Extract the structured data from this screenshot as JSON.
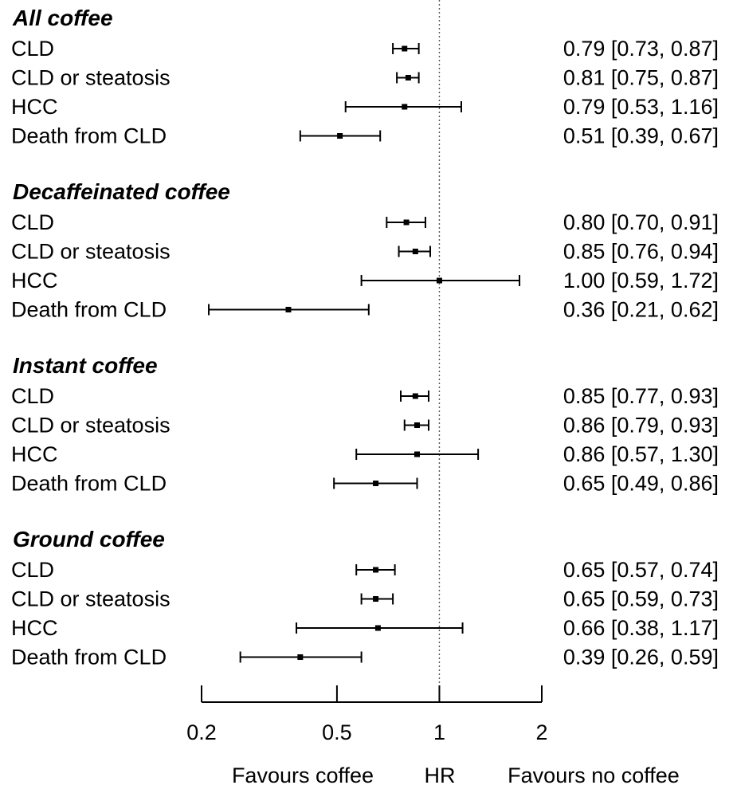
{
  "chart_data": {
    "type": "forest",
    "scale": "log",
    "axis": {
      "ticks": [
        0.2,
        0.5,
        1,
        2
      ],
      "tick_labels": [
        "0.2",
        "0.5",
        "1",
        "2"
      ],
      "range": [
        0.2,
        2
      ],
      "reference_line": 1
    },
    "x_captions": {
      "left": "Favours coffee",
      "center": "HR",
      "right": "Favours no coffee"
    },
    "groups": [
      {
        "title": "All coffee",
        "rows": [
          {
            "label": "CLD",
            "hr": 0.79,
            "lo": 0.73,
            "hi": 0.87,
            "text": "0.79 [0.73, 0.87]"
          },
          {
            "label": "CLD or steatosis",
            "hr": 0.81,
            "lo": 0.75,
            "hi": 0.87,
            "text": "0.81 [0.75, 0.87]"
          },
          {
            "label": "HCC",
            "hr": 0.79,
            "lo": 0.53,
            "hi": 1.16,
            "text": "0.79 [0.53, 1.16]"
          },
          {
            "label": "Death from CLD",
            "hr": 0.51,
            "lo": 0.39,
            "hi": 0.67,
            "text": "0.51 [0.39, 0.67]"
          }
        ]
      },
      {
        "title": "Decaffeinated coffee",
        "rows": [
          {
            "label": "CLD",
            "hr": 0.8,
            "lo": 0.7,
            "hi": 0.91,
            "text": "0.80 [0.70, 0.91]"
          },
          {
            "label": "CLD or steatosis",
            "hr": 0.85,
            "lo": 0.76,
            "hi": 0.94,
            "text": "0.85 [0.76, 0.94]"
          },
          {
            "label": "HCC",
            "hr": 1.0,
            "lo": 0.59,
            "hi": 1.72,
            "text": "1.00 [0.59, 1.72]"
          },
          {
            "label": "Death from CLD",
            "hr": 0.36,
            "lo": 0.21,
            "hi": 0.62,
            "text": "0.36 [0.21, 0.62]"
          }
        ]
      },
      {
        "title": "Instant coffee",
        "rows": [
          {
            "label": "CLD",
            "hr": 0.85,
            "lo": 0.77,
            "hi": 0.93,
            "text": "0.85 [0.77, 0.93]"
          },
          {
            "label": "CLD or steatosis",
            "hr": 0.86,
            "lo": 0.79,
            "hi": 0.93,
            "text": "0.86 [0.79, 0.93]"
          },
          {
            "label": "HCC",
            "hr": 0.86,
            "lo": 0.57,
            "hi": 1.3,
            "text": "0.86 [0.57, 1.30]"
          },
          {
            "label": "Death from CLD",
            "hr": 0.65,
            "lo": 0.49,
            "hi": 0.86,
            "text": "0.65 [0.49, 0.86]"
          }
        ]
      },
      {
        "title": "Ground coffee",
        "rows": [
          {
            "label": "CLD",
            "hr": 0.65,
            "lo": 0.57,
            "hi": 0.74,
            "text": "0.65 [0.57, 0.74]"
          },
          {
            "label": "CLD or steatosis",
            "hr": 0.65,
            "lo": 0.59,
            "hi": 0.73,
            "text": "0.65 [0.59, 0.73]"
          },
          {
            "label": "HCC",
            "hr": 0.66,
            "lo": 0.38,
            "hi": 1.17,
            "text": "0.66 [0.38, 1.17]"
          },
          {
            "label": "Death from CLD",
            "hr": 0.39,
            "lo": 0.26,
            "hi": 0.59,
            "text": "0.39 [0.26, 0.59]"
          }
        ]
      }
    ]
  }
}
